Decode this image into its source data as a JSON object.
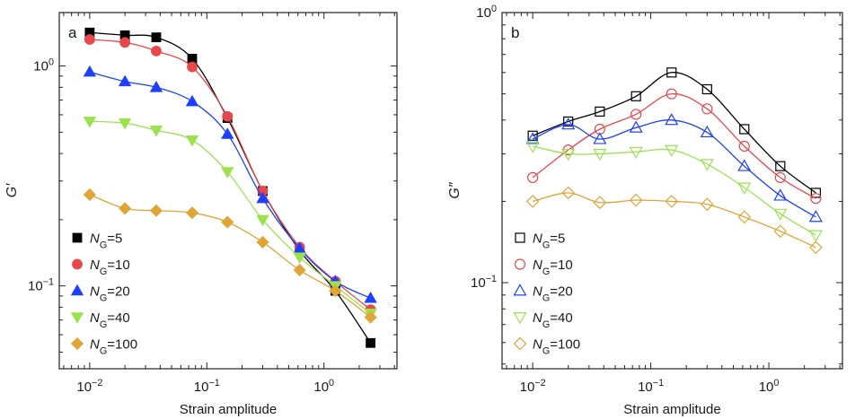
{
  "figure": {
    "x_tick_labels": [
      {
        "base": "10",
        "exp": "−2"
      },
      {
        "base": "10",
        "exp": "−1"
      },
      {
        "base": "10",
        "exp": "0"
      }
    ]
  },
  "chart_data": [
    {
      "type": "scatter",
      "panel_label": "a",
      "xlabel": "Strain amplitude",
      "ylabel": "G′",
      "x_scale": "log",
      "y_scale": "log",
      "xlim": [
        0.0055,
        4.2
      ],
      "ylim": [
        0.042,
        1.75
      ],
      "y_ticks": [
        {
          "value": 1,
          "label": "10",
          "exp": "0"
        },
        {
          "value": 0.1,
          "label": "10",
          "exp": "−1"
        }
      ],
      "legend_position": "bottom-left",
      "marker_fill": "filled",
      "series": [
        {
          "name": "N",
          "subscript": "G",
          "suffix": "=5",
          "color": "#000000",
          "marker": "square",
          "x": [
            0.01,
            0.02,
            0.037,
            0.075,
            0.15,
            0.3,
            0.62,
            1.25,
            2.5
          ],
          "y": [
            1.42,
            1.38,
            1.35,
            1.08,
            0.58,
            0.27,
            0.145,
            0.095,
            0.055
          ]
        },
        {
          "name": "N",
          "subscript": "G",
          "suffix": "=10",
          "color": "#e8474b",
          "marker": "circle",
          "x": [
            0.01,
            0.02,
            0.037,
            0.075,
            0.15,
            0.3,
            0.62,
            1.25,
            2.5
          ],
          "y": [
            1.32,
            1.28,
            1.17,
            0.99,
            0.59,
            0.27,
            0.15,
            0.105,
            0.078
          ]
        },
        {
          "name": "N",
          "subscript": "G",
          "suffix": "=20",
          "color": "#1d3fff",
          "marker": "triangle-up",
          "x": [
            0.01,
            0.02,
            0.037,
            0.075,
            0.15,
            0.3,
            0.62,
            1.25,
            2.5
          ],
          "y": [
            0.94,
            0.85,
            0.8,
            0.69,
            0.49,
            0.25,
            0.148,
            0.105,
            0.088
          ]
        },
        {
          "name": "N",
          "subscript": "G",
          "suffix": "=40",
          "color": "#9be24f",
          "marker": "triangle-down",
          "x": [
            0.01,
            0.02,
            0.037,
            0.075,
            0.15,
            0.3,
            0.62,
            1.25,
            2.5
          ],
          "y": [
            0.56,
            0.55,
            0.51,
            0.46,
            0.33,
            0.2,
            0.135,
            0.1,
            0.075
          ]
        },
        {
          "name": "N",
          "subscript": "G",
          "suffix": "=100",
          "color": "#dfa537",
          "marker": "diamond",
          "x": [
            0.01,
            0.02,
            0.037,
            0.075,
            0.15,
            0.3,
            0.62,
            1.25,
            2.5
          ],
          "y": [
            0.26,
            0.225,
            0.22,
            0.215,
            0.195,
            0.158,
            0.118,
            0.095,
            0.072
          ]
        }
      ]
    },
    {
      "type": "scatter",
      "panel_label": "b",
      "xlabel": "Strain amplitude",
      "ylabel": "G″",
      "x_scale": "log",
      "y_scale": "log",
      "xlim": [
        0.0055,
        4.2
      ],
      "ylim": [
        0.048,
        1.0
      ],
      "y_ticks": [
        {
          "value": 1,
          "label": "10",
          "exp": "0"
        },
        {
          "value": 0.1,
          "label": "10",
          "exp": "−1"
        }
      ],
      "legend_position": "bottom-left",
      "marker_fill": "open",
      "series": [
        {
          "name": "N",
          "subscript": "G",
          "suffix": "=5",
          "color": "#000000",
          "marker": "square",
          "x": [
            0.01,
            0.02,
            0.037,
            0.075,
            0.15,
            0.3,
            0.62,
            1.25,
            2.5
          ],
          "y": [
            0.35,
            0.395,
            0.43,
            0.49,
            0.6,
            0.52,
            0.37,
            0.27,
            0.215
          ]
        },
        {
          "name": "N",
          "subscript": "G",
          "suffix": "=10",
          "color": "#e8474b",
          "marker": "circle",
          "x": [
            0.01,
            0.02,
            0.037,
            0.075,
            0.15,
            0.3,
            0.62,
            1.25,
            2.5
          ],
          "y": [
            0.245,
            0.31,
            0.37,
            0.42,
            0.5,
            0.44,
            0.32,
            0.245,
            0.205
          ]
        },
        {
          "name": "N",
          "subscript": "G",
          "suffix": "=20",
          "color": "#1d3fff",
          "marker": "triangle-up",
          "x": [
            0.01,
            0.02,
            0.037,
            0.075,
            0.15,
            0.3,
            0.62,
            1.25,
            2.5
          ],
          "y": [
            0.34,
            0.385,
            0.34,
            0.375,
            0.4,
            0.36,
            0.27,
            0.21,
            0.175
          ]
        },
        {
          "name": "N",
          "subscript": "G",
          "suffix": "=40",
          "color": "#9be24f",
          "marker": "triangle-down",
          "x": [
            0.01,
            0.02,
            0.037,
            0.075,
            0.15,
            0.3,
            0.62,
            1.25,
            2.5
          ],
          "y": [
            0.32,
            0.3,
            0.3,
            0.305,
            0.31,
            0.275,
            0.225,
            0.18,
            0.15
          ]
        },
        {
          "name": "N",
          "subscript": "G",
          "suffix": "=100",
          "color": "#dfa537",
          "marker": "diamond",
          "x": [
            0.01,
            0.02,
            0.037,
            0.075,
            0.15,
            0.3,
            0.62,
            1.25,
            2.5
          ],
          "y": [
            0.2,
            0.215,
            0.198,
            0.202,
            0.2,
            0.195,
            0.175,
            0.155,
            0.135
          ]
        }
      ]
    }
  ]
}
